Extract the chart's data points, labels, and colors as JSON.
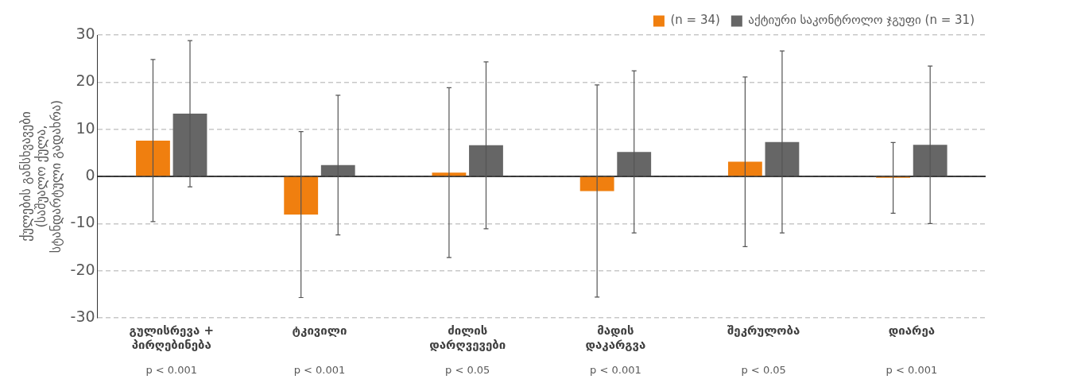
{
  "chart_data": {
    "type": "bar",
    "categories": [
      "გულისრევა + პირღებინება",
      "ტკივილი",
      "ძილის დარღვევები",
      "მადის დაკარგვა",
      "შეკრულობა",
      "დიარეა"
    ],
    "ylabel": "ქულების განსხვავები (საშუალო ქულა, სტანდარტული გადახრა)",
    "series": [
      {
        "name": "(n = 34)",
        "color": "#f07f0f",
        "values": [
          7.6,
          -8.1,
          0.8,
          -3.1,
          3.1,
          -0.3
        ],
        "errors": [
          17.2,
          17.6,
          18,
          22.5,
          18,
          7.5
        ]
      },
      {
        "name": "აქტიური საკონტროლო ჯგუფი (n = 31)",
        "color": "#666666",
        "values": [
          13.3,
          2.4,
          6.6,
          5.2,
          7.3,
          6.7
        ],
        "errors": [
          15.5,
          14.8,
          17.7,
          17.2,
          19.3,
          16.7
        ]
      }
    ],
    "ylim": [
      -30,
      30
    ],
    "yticks": [
      -30,
      -20,
      -10,
      0,
      10,
      20,
      30
    ],
    "grid": "y",
    "legend": "top right",
    "ref_lines": [
      {
        "axis": "y",
        "value": 0,
        "color": "#000000",
        "line_style": "solid"
      }
    ],
    "annotations": [
      "p < 0.001",
      "p < 0.001",
      "p < 0.05",
      "p < 0.001",
      "p < 0.05",
      "p < 0.001"
    ]
  }
}
